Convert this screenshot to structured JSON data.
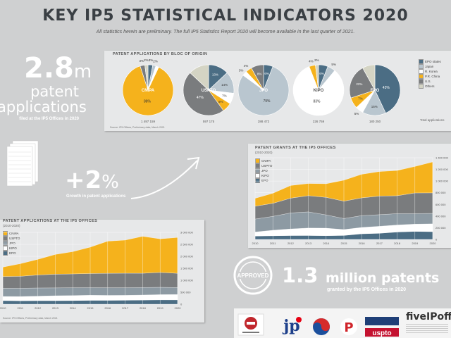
{
  "header": {
    "title": "KEY IP5 STATISTICAL INDICATORS 2020",
    "subtitle": "All statistics herein are preliminary. The full IP5 Statistics Report 2020 will become available in the last quarter of 2021."
  },
  "left": {
    "applications_number": "2.8",
    "applications_unit": "m",
    "applications_line1": "patent",
    "applications_line2": "applications",
    "applications_sub": "filed at the IP5 Offices in 2020",
    "growth_value": "+2",
    "growth_unit": "%",
    "growth_label": "Growth in patent applications"
  },
  "bottom_right": {
    "grants_number": "1.3",
    "grants_line1": "million patents",
    "grants_line2": "granted by the IP5 Offices in 2020"
  },
  "colors": {
    "CNIPA": "#f5b21c",
    "JPO": "#8d9aa3",
    "KIPO": "#ffffff",
    "USPTO": "#7a7c7e",
    "EPO": "#4b6d84",
    "Others": "#b9c6cf"
  },
  "footer": {
    "brand": "fiveIPoffi"
  },
  "chart_data": [
    {
      "type": "pie",
      "title": "PATENT APPLICATIONS BY BLOC OF ORIGIN",
      "legend": [
        "EPO states",
        "Japan",
        "R. Korea",
        "P.R. China",
        "U.S.",
        "Others"
      ],
      "legend_colors": [
        "#4b6d84",
        "#b9c6cf",
        "#ffffff",
        "#f5b21c",
        "#7a7c7e",
        "#d4d4c4"
      ],
      "pies": [
        {
          "office": "CNIPA",
          "total": "1 497 159",
          "values": [
            3,
            2,
            2,
            88,
            3,
            2
          ],
          "labels": [
            "3%",
            "2%",
            "",
            "88%",
            "3%",
            "2%"
          ]
        },
        {
          "office": "USPTO",
          "total": "597 175",
          "values": [
            13,
            14,
            7,
            6,
            47,
            13
          ],
          "labels": [
            "13%",
            "14%",
            "7%",
            "6%",
            "47%",
            ""
          ]
        },
        {
          "office": "JPO",
          "total": "288 472",
          "values": [
            6,
            79,
            3,
            4,
            8,
            0
          ],
          "labels": [
            "6%",
            "79%",
            "3%",
            "4%",
            "8%",
            ""
          ]
        },
        {
          "office": "KIPO",
          "total": "226 759",
          "values": [
            6,
            5,
            83,
            4,
            0,
            2
          ],
          "labels": [
            "6%",
            "5%",
            "83%",
            "4%",
            "",
            "2%"
          ]
        },
        {
          "office": "EPO",
          "total": "180 250",
          "values": [
            43,
            15,
            5,
            7,
            22,
            8
          ],
          "labels": [
            "43%",
            "15%",
            "5%",
            "7%",
            "22%",
            ""
          ]
        }
      ],
      "note_right": "Total applications",
      "source": "Source: IP5 Offices, Preliminary data, March 2021"
    },
    {
      "type": "area",
      "title": "PATENT GRANTS AT THE IP5 OFFICES",
      "subtitle": "(2010-2020)",
      "x": [
        "2010",
        "2011",
        "2012",
        "2013",
        "2014",
        "2015",
        "2016",
        "2017",
        "2018",
        "2019",
        "2020"
      ],
      "series": [
        {
          "name": "EPO",
          "values": [
            58,
            62,
            66,
            67,
            64,
            68,
            96,
            105,
            127,
            137,
            133
          ]
        },
        {
          "name": "KIPO",
          "values": [
            69,
            95,
            114,
            128,
            129,
            101,
            109,
            120,
            120,
            125,
            134
          ]
        },
        {
          "name": "JPO",
          "values": [
            222,
            238,
            274,
            277,
            227,
            189,
            203,
            199,
            195,
            180,
            179
          ]
        },
        {
          "name": "USPTO",
          "values": [
            220,
            224,
            253,
            278,
            301,
            298,
            304,
            319,
            307,
            355,
            352
          ]
        },
        {
          "name": "CNIPA",
          "values": [
            135,
            172,
            217,
            208,
            233,
            359,
            404,
            420,
            432,
            453,
            530
          ]
        }
      ],
      "ylim": [
        0,
        1400
      ],
      "yticks": [
        "0",
        "200 000",
        "400 000",
        "600 000",
        "800 000",
        "1 000 000",
        "1 200 000",
        "1 400 000"
      ],
      "legend": [
        "CNIPA",
        "USPTO",
        "JPO",
        "KIPO",
        "EPO"
      ]
    },
    {
      "type": "area",
      "title": "PATENT APPLICATIONS AT THE IP5 OFFICES",
      "subtitle": "(2010-2020)",
      "x": [
        "2010",
        "2011",
        "2012",
        "2013",
        "2014",
        "2015",
        "2016",
        "2017",
        "2018",
        "2019",
        "2020"
      ],
      "series": [
        {
          "name": "EPO",
          "values": [
            151,
            143,
            148,
            148,
            152,
            160,
            160,
            166,
            174,
            181,
            180
          ]
        },
        {
          "name": "KIPO",
          "values": [
            171,
            178,
            188,
            205,
            210,
            214,
            208,
            204,
            209,
            218,
            226
          ]
        },
        {
          "name": "JPO",
          "values": [
            344,
            342,
            342,
            328,
            325,
            318,
            318,
            318,
            313,
            307,
            288
          ]
        },
        {
          "name": "USPTO",
          "values": [
            490,
            503,
            543,
            571,
            579,
            589,
            606,
            607,
            597,
            621,
            597
          ]
        },
        {
          "name": "CNIPA",
          "values": [
            391,
            526,
            652,
            825,
            928,
            1102,
            1339,
            1382,
            1542,
            1401,
            1497
          ]
        }
      ],
      "ylim": [
        0,
        3000
      ],
      "yticks": [
        "0",
        "500 000",
        "1 000 000",
        "1 500 000",
        "2 000 000",
        "2 500 000",
        "3 000 000"
      ],
      "legend": [
        "CNIPA",
        "USPTO",
        "JPO",
        "KIPO",
        "EPO"
      ],
      "source": "Source: IP5 Offices, Preliminary data, March 2021"
    }
  ]
}
